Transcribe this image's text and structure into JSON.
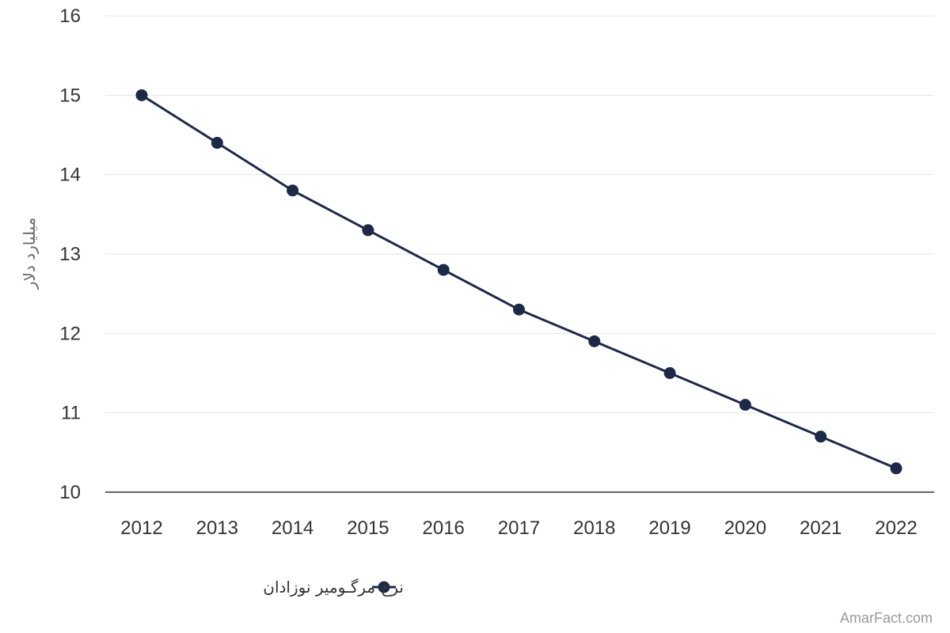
{
  "chart_data": {
    "type": "line",
    "title": "",
    "xlabel": "",
    "ylabel": "میلیارد دلار",
    "ylim": [
      10,
      16
    ],
    "yticks": [
      "10",
      "11",
      "12",
      "13",
      "14",
      "15",
      "16"
    ],
    "categories": [
      "2012",
      "2013",
      "2014",
      "2015",
      "2016",
      "2017",
      "2018",
      "2019",
      "2020",
      "2021",
      "2022"
    ],
    "series": [
      {
        "name": "نرخ مرگـومیر نوزادان",
        "values": [
          15.0,
          14.4,
          13.8,
          13.3,
          12.8,
          12.3,
          11.9,
          11.5,
          11.1,
          10.7,
          10.3
        ],
        "color": "#1c2a48"
      }
    ],
    "grid": true,
    "legend_position": "bottom-center"
  },
  "watermark": "AmarFact.com"
}
